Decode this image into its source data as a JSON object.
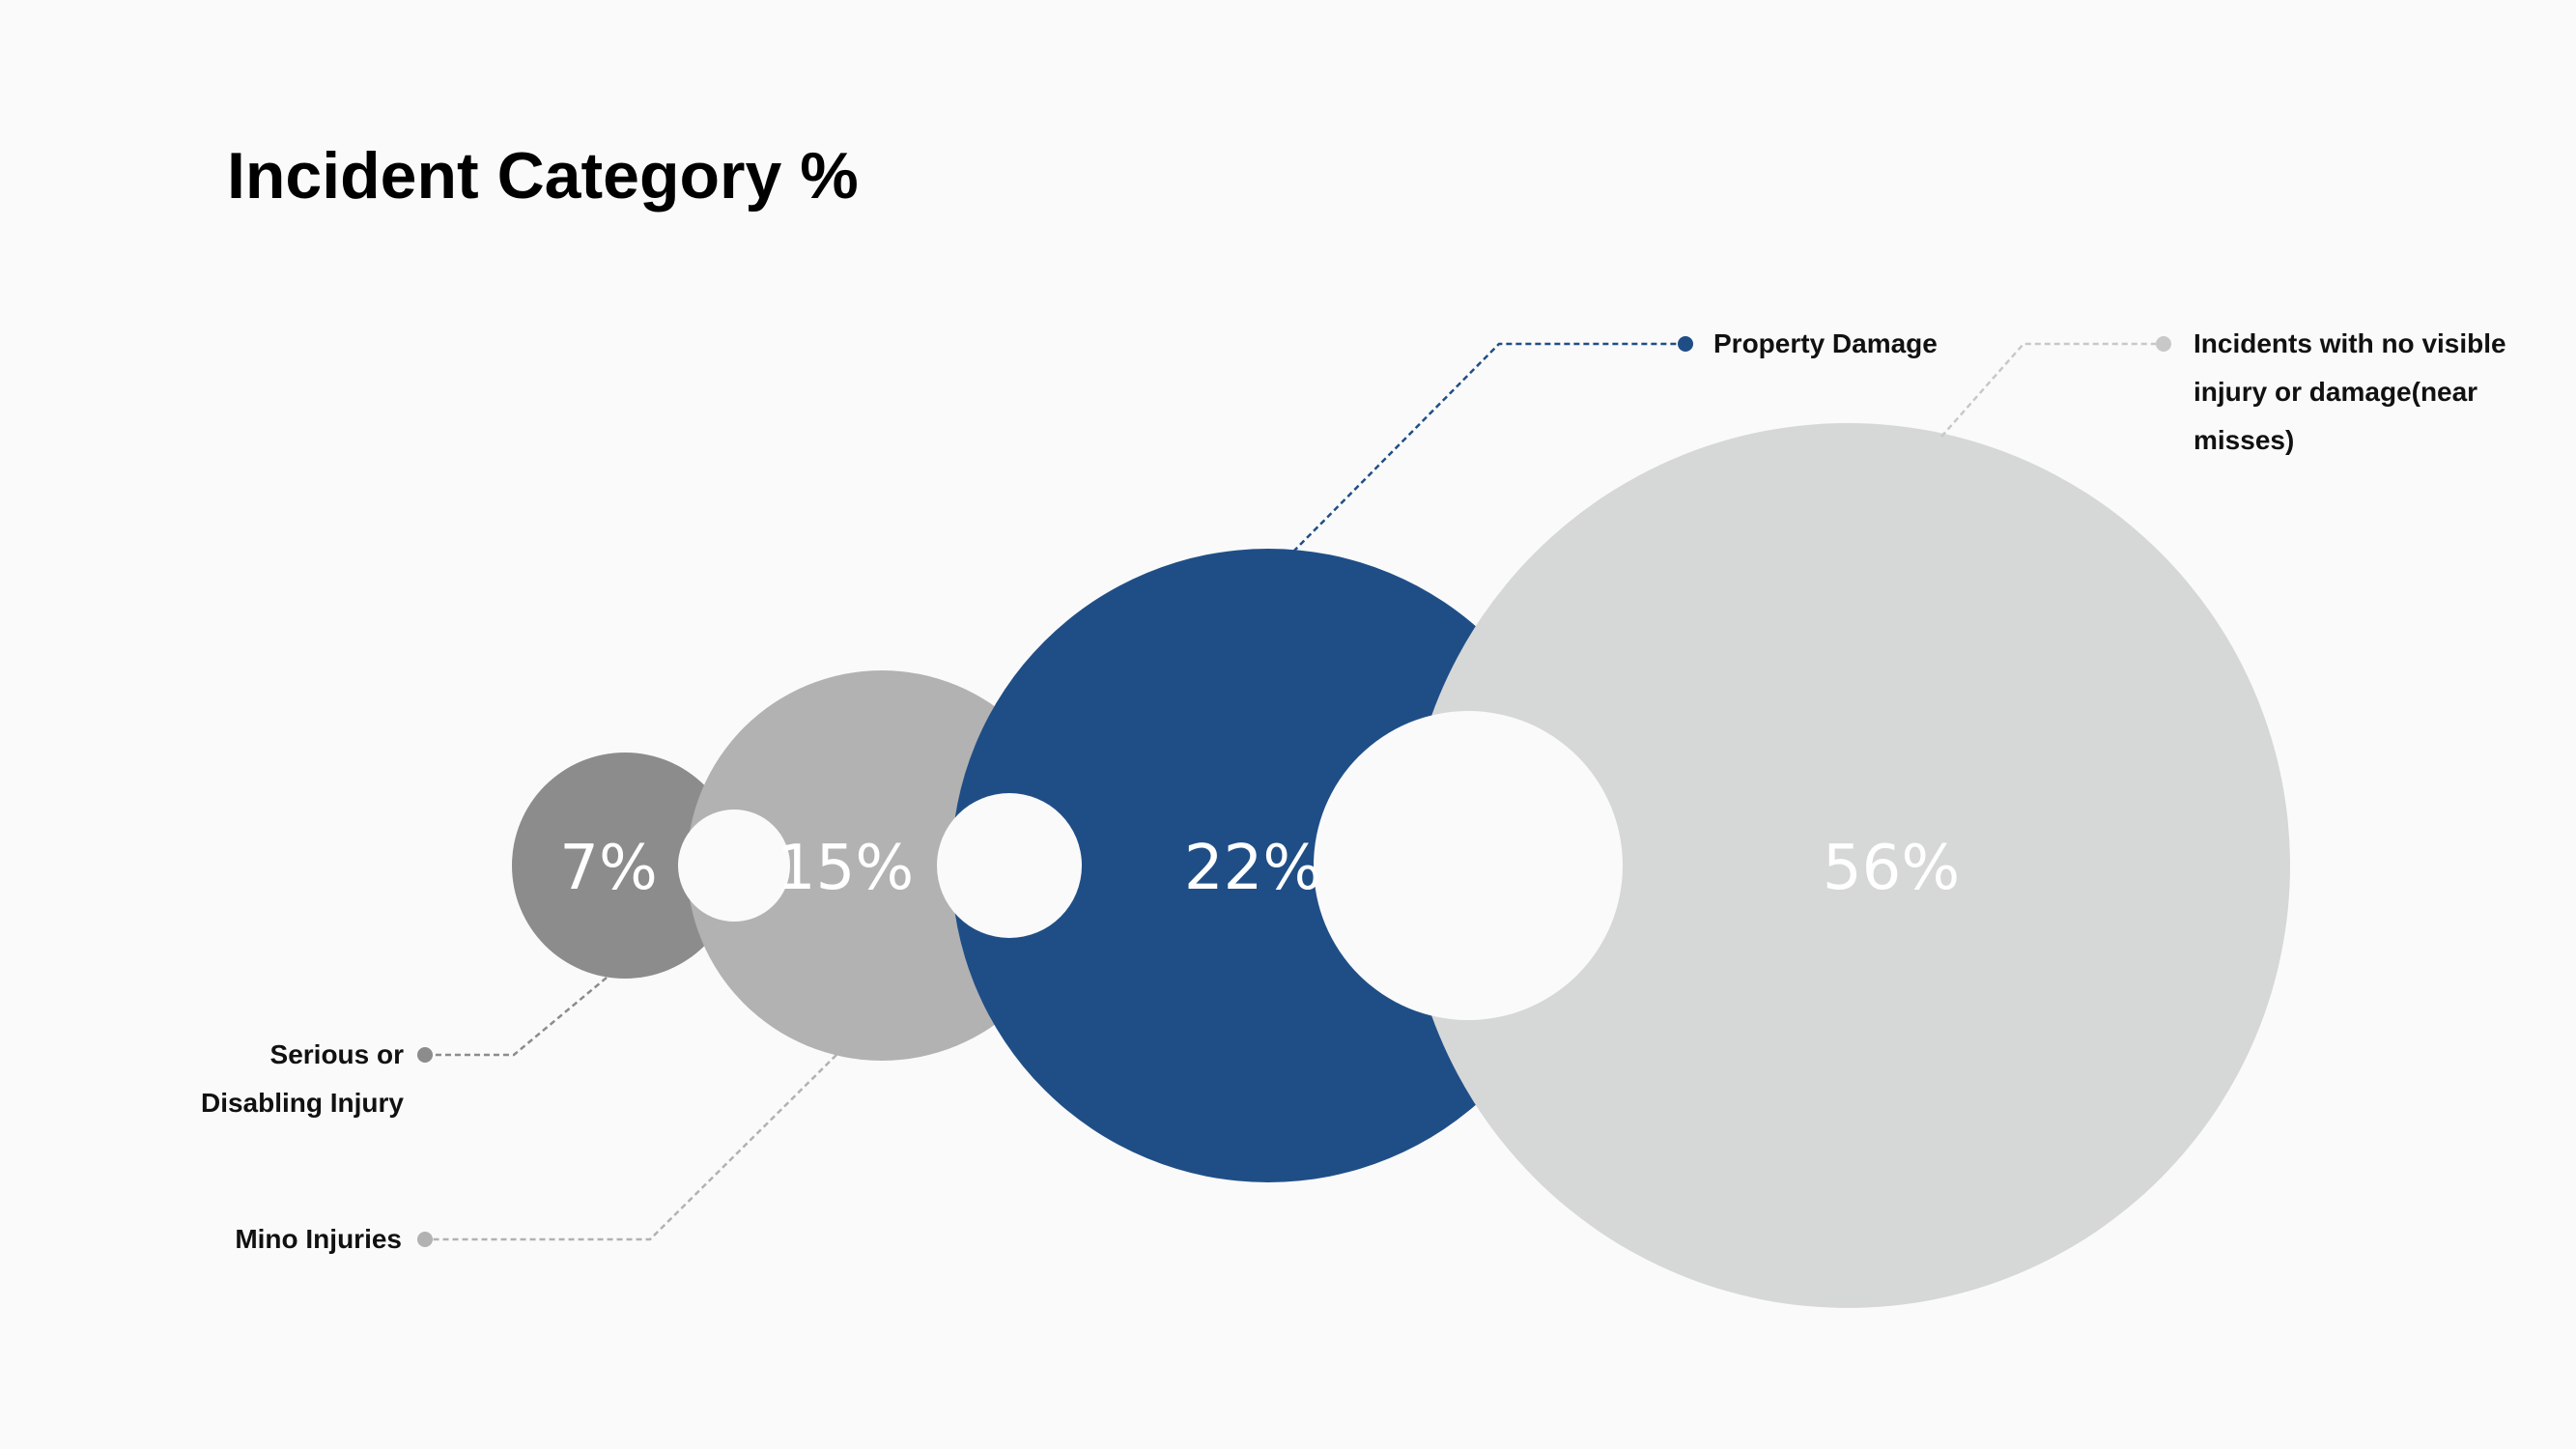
{
  "chart_data": {
    "type": "bubble",
    "title": "Incident Category %",
    "series": [
      {
        "name": "Serious or Disabling Injury",
        "label_lines": [
          "Serious or",
          "Disabling Injury"
        ],
        "value": 7,
        "value_label": "7%",
        "color": "#8c8c8c",
        "line_color": "#8c8c8c"
      },
      {
        "name": "Mino Injuries",
        "label_lines": [
          "Mino Injuries"
        ],
        "value": 15,
        "value_label": "15%",
        "color": "#b2b2b2",
        "line_color": "#b2b2b2"
      },
      {
        "name": "Property Damage",
        "label_lines": [
          "Property Damage"
        ],
        "value": 22,
        "value_label": "22%",
        "color": "#1f4e87",
        "line_color": "#1f4e87"
      },
      {
        "name": "Incidents with no visible injury or damage(near misses)",
        "label_lines": [
          "Incidents with no visible",
          "injury or damage(near",
          "misses)"
        ],
        "value": 56,
        "value_label": "56%",
        "color": "#d6d7d7",
        "line_color": "#c8c8c8"
      }
    ],
    "background": "#fafafa",
    "legend": "callouts"
  }
}
